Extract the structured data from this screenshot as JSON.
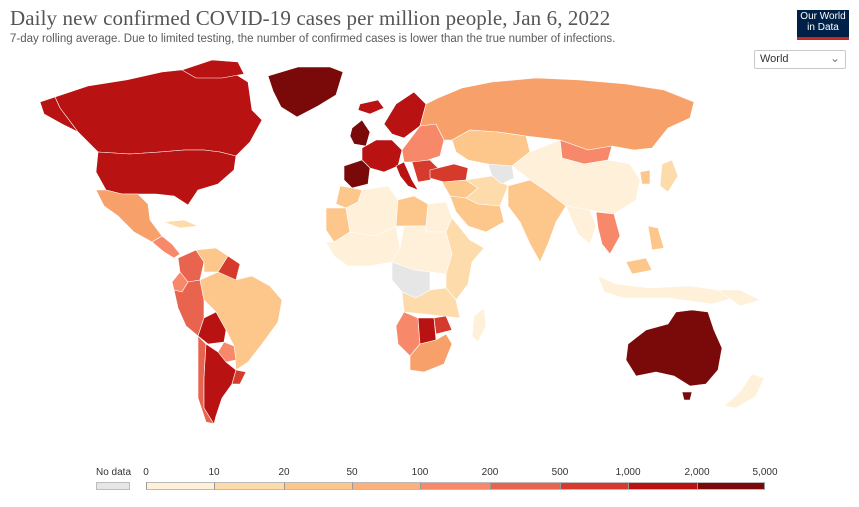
{
  "header": {
    "title": "Daily new confirmed COVID-19 cases per million people, Jan 6, 2022",
    "subtitle": "7-day rolling average. Due to limited testing, the number of confirmed cases is lower than the true number of infections.",
    "logo_line1": "Our World",
    "logo_line2": "in Data"
  },
  "region_select": {
    "value": "World",
    "icon": "chevron-down-icon"
  },
  "legend": {
    "no_data_label": "No data",
    "no_data_color": "#e6e6e6",
    "ticks": [
      "0",
      "10",
      "20",
      "50",
      "100",
      "200",
      "500",
      "1,000",
      "2,000",
      "5,000"
    ],
    "colors": [
      "#fef0d9",
      "#fddbab",
      "#fdc68b",
      "#fcb07c",
      "#f7896a",
      "#e8644f",
      "#d63a2c",
      "#b81212",
      "#7a0a0a"
    ]
  },
  "regions": [
    {
      "name": "Canada",
      "color": "#b81212"
    },
    {
      "name": "Greenland",
      "color": "#7a0a0a"
    },
    {
      "name": "United States",
      "color": "#b81212"
    },
    {
      "name": "Mexico",
      "color": "#f7a06a"
    },
    {
      "name": "Central America",
      "color": "#f7896a"
    },
    {
      "name": "Cuba",
      "color": "#fddbab"
    },
    {
      "name": "Colombia",
      "color": "#e8644f"
    },
    {
      "name": "Venezuela",
      "color": "#fdc68b"
    },
    {
      "name": "Guyana",
      "color": "#d63a2c"
    },
    {
      "name": "Ecuador",
      "color": "#f7896a"
    },
    {
      "name": "Peru",
      "color": "#e8644f"
    },
    {
      "name": "Brazil",
      "color": "#fdc68b"
    },
    {
      "name": "Bolivia",
      "color": "#b81212"
    },
    {
      "name": "Paraguay",
      "color": "#f7896a"
    },
    {
      "name": "Chile",
      "color": "#e8644f"
    },
    {
      "name": "Argentina",
      "color": "#b81212"
    },
    {
      "name": "Uruguay",
      "color": "#d63a2c"
    },
    {
      "name": "Iceland",
      "color": "#b81212"
    },
    {
      "name": "UK",
      "color": "#7a0a0a"
    },
    {
      "name": "Scandinavia",
      "color": "#b81212"
    },
    {
      "name": "Western Europe",
      "color": "#b81212"
    },
    {
      "name": "Iberia",
      "color": "#7a0a0a"
    },
    {
      "name": "Eastern Europe",
      "color": "#f7896a"
    },
    {
      "name": "Balkans",
      "color": "#d63a2c"
    },
    {
      "name": "Italy",
      "color": "#b81212"
    },
    {
      "name": "Turkey",
      "color": "#d63a2c"
    },
    {
      "name": "Russia",
      "color": "#f7a06a"
    },
    {
      "name": "Kazakhstan",
      "color": "#fdc68b"
    },
    {
      "name": "Mongolia",
      "color": "#f7896a"
    },
    {
      "name": "China",
      "color": "#fef0d9"
    },
    {
      "name": "Middle East",
      "color": "#fdc68b"
    },
    {
      "name": "Iran",
      "color": "#fddbab"
    },
    {
      "name": "Saudi Arabia",
      "color": "#fdc68b"
    },
    {
      "name": "Afghanistan",
      "color": "#e6e6e6"
    },
    {
      "name": "India",
      "color": "#fdc68b"
    },
    {
      "name": "Southeast Asia",
      "color": "#fef0d9"
    },
    {
      "name": "Vietnam",
      "color": "#f7896a"
    },
    {
      "name": "Philippines",
      "color": "#fdc68b"
    },
    {
      "name": "Malaysia",
      "color": "#fdc68b"
    },
    {
      "name": "Indonesia",
      "color": "#fef0d9"
    },
    {
      "name": "Japan",
      "color": "#fddbab"
    },
    {
      "name": "Korea",
      "color": "#fdc68b"
    },
    {
      "name": "North Africa",
      "color": "#fef0d9"
    },
    {
      "name": "Algeria",
      "color": "#fef0d9"
    },
    {
      "name": "Libya",
      "color": "#fdc68b"
    },
    {
      "name": "Egypt",
      "color": "#fef0d9"
    },
    {
      "name": "Morocco",
      "color": "#fdc68b"
    },
    {
      "name": "Mauritania",
      "color": "#fdc68b"
    },
    {
      "name": "West Africa",
      "color": "#fef0d9"
    },
    {
      "name": "Central Africa",
      "color": "#fef0d9"
    },
    {
      "name": "East Africa",
      "color": "#fddbab"
    },
    {
      "name": "DR Congo",
      "color": "#e6e6e6"
    },
    {
      "name": "Southern Africa",
      "color": "#fddbab"
    },
    {
      "name": "Namibia",
      "color": "#f7896a"
    },
    {
      "name": "Botswana",
      "color": "#b81212"
    },
    {
      "name": "South Africa",
      "color": "#f7a06a"
    },
    {
      "name": "Zimbabwe",
      "color": "#d63a2c"
    },
    {
      "name": "Madagascar",
      "color": "#fef0d9"
    },
    {
      "name": "Australia",
      "color": "#7a0a0a"
    },
    {
      "name": "New Zealand",
      "color": "#fef0d9"
    },
    {
      "name": "Papua New Guinea",
      "color": "#fef0d9"
    }
  ]
}
